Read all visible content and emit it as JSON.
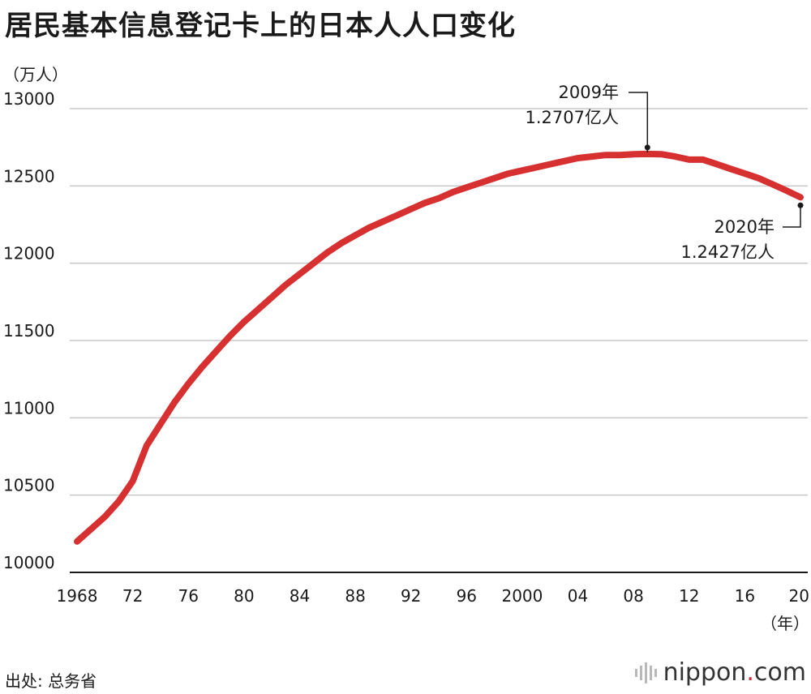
{
  "title": "居民基本信息登记卡上的日本人人口变化",
  "source": "出处: 总务省",
  "logo": {
    "name": "nippon",
    "dot": ".",
    "suffix": "com"
  },
  "chart_data": {
    "type": "line",
    "title": "居民基本信息登记卡上的日本人人口变化",
    "ylabel": "（万人）",
    "xlabel": "（年）",
    "ylim": [
      10000,
      13000
    ],
    "xlim": [
      1968,
      2020
    ],
    "y_ticks": [
      10000,
      10500,
      11000,
      11500,
      12000,
      12500,
      13000
    ],
    "x_ticks": [
      {
        "value": 1968,
        "label": "1968"
      },
      {
        "value": 1972,
        "label": "72"
      },
      {
        "value": 1976,
        "label": "76"
      },
      {
        "value": 1980,
        "label": "80"
      },
      {
        "value": 1984,
        "label": "84"
      },
      {
        "value": 1988,
        "label": "88"
      },
      {
        "value": 1992,
        "label": "92"
      },
      {
        "value": 1996,
        "label": "96"
      },
      {
        "value": 2000,
        "label": "2000"
      },
      {
        "value": 2004,
        "label": "04"
      },
      {
        "value": 2008,
        "label": "08"
      },
      {
        "value": 2012,
        "label": "12"
      },
      {
        "value": 2016,
        "label": "16"
      },
      {
        "value": 2020,
        "label": "20"
      }
    ],
    "grid": true,
    "line_color": "#d63031",
    "series": [
      {
        "x": [
          1968,
          1969,
          1970,
          1971,
          1972,
          1973,
          1974,
          1975,
          1976,
          1977,
          1978,
          1979,
          1980,
          1981,
          1982,
          1983,
          1984,
          1985,
          1986,
          1987,
          1988,
          1989,
          1990,
          1991,
          1992,
          1993,
          1994,
          1995,
          1996,
          1997,
          1998,
          1999,
          2000,
          2001,
          2002,
          2003,
          2004,
          2005,
          2006,
          2007,
          2008,
          2009,
          2010,
          2011,
          2012,
          2013,
          2014,
          2015,
          2016,
          2017,
          2018,
          2019,
          2020
        ],
        "values": [
          10200,
          10280,
          10360,
          10460,
          10590,
          10820,
          10960,
          11100,
          11220,
          11330,
          11430,
          11530,
          11620,
          11700,
          11780,
          11860,
          11930,
          12000,
          12070,
          12130,
          12180,
          12230,
          12270,
          12310,
          12350,
          12390,
          12420,
          12460,
          12490,
          12520,
          12550,
          12580,
          12600,
          12620,
          12640,
          12660,
          12680,
          12690,
          12700,
          12700,
          12705,
          12707,
          12705,
          12690,
          12670,
          12670,
          12640,
          12610,
          12580,
          12550,
          12510,
          12470,
          12427
        ]
      }
    ],
    "annotations": [
      {
        "x": 2009,
        "y": 12707,
        "lines": [
          "2009年",
          "1.2707亿人"
        ]
      },
      {
        "x": 2020,
        "y": 12427,
        "lines": [
          "2020年",
          "1.2427亿人"
        ]
      }
    ]
  }
}
